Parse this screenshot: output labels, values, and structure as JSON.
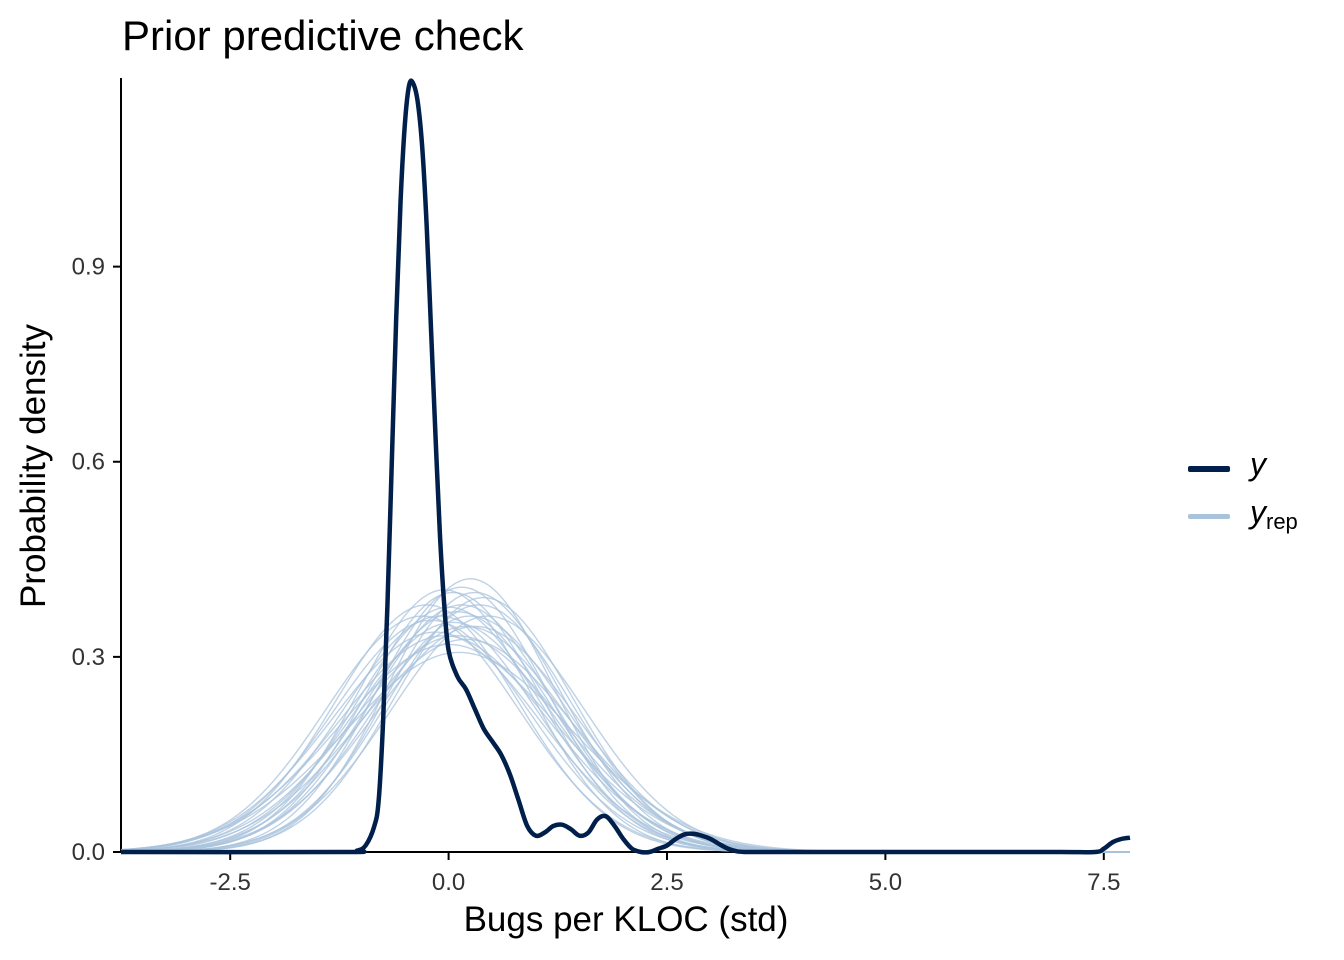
{
  "chart_data": {
    "type": "line",
    "title": "Prior predictive check",
    "xlabel": "Bugs per KLOC (std)",
    "ylabel": "Probability density",
    "xlim": [
      -3.75,
      7.8
    ],
    "ylim": [
      0,
      1.19
    ],
    "xticks": [
      "-2.5",
      "0.0",
      "2.5",
      "5.0",
      "7.5"
    ],
    "yticks": [
      "0.0",
      "0.3",
      "0.6",
      "0.9"
    ],
    "grid": false,
    "legend_position": "right",
    "legend": [
      {
        "label": "y",
        "subscript": "",
        "color": "#011f4b"
      },
      {
        "label": "y",
        "subscript": "rep",
        "color": "#a9c3dc"
      }
    ],
    "series": [
      {
        "name": "y",
        "color": "#011f4b",
        "x": [
          -3.75,
          -1.2,
          -1.05,
          -0.95,
          -0.85,
          -0.8,
          -0.75,
          -0.7,
          -0.65,
          -0.6,
          -0.55,
          -0.5,
          -0.45,
          -0.4,
          -0.35,
          -0.3,
          -0.25,
          -0.2,
          -0.15,
          -0.1,
          -0.05,
          0.0,
          0.1,
          0.2,
          0.3,
          0.4,
          0.5,
          0.6,
          0.7,
          0.8,
          0.9,
          1.0,
          1.1,
          1.2,
          1.3,
          1.4,
          1.5,
          1.6,
          1.7,
          1.8,
          1.9,
          2.0,
          2.1,
          2.2,
          2.3,
          2.4,
          2.5,
          2.6,
          2.7,
          2.8,
          2.9,
          3.0,
          3.1,
          3.2,
          3.3,
          3.4,
          3.5,
          3.6,
          3.7,
          4.0,
          5.0,
          6.0,
          7.0,
          7.4,
          7.5,
          7.6,
          7.7,
          7.8
        ],
        "y": [
          0.0,
          0.0,
          0.002,
          0.01,
          0.04,
          0.08,
          0.2,
          0.38,
          0.6,
          0.82,
          1.0,
          1.12,
          1.18,
          1.18,
          1.15,
          1.08,
          0.96,
          0.8,
          0.64,
          0.49,
          0.38,
          0.31,
          0.27,
          0.25,
          0.22,
          0.19,
          0.17,
          0.15,
          0.12,
          0.08,
          0.04,
          0.025,
          0.03,
          0.04,
          0.042,
          0.035,
          0.025,
          0.03,
          0.05,
          0.055,
          0.04,
          0.02,
          0.005,
          0.0,
          0.0,
          0.005,
          0.01,
          0.02,
          0.027,
          0.028,
          0.025,
          0.02,
          0.012,
          0.005,
          0.001,
          0.0,
          0.0,
          0.0,
          0.0,
          0.0,
          0.0,
          0.0,
          0.0,
          0.0,
          0.005,
          0.015,
          0.02,
          0.022
        ]
      },
      {
        "name": "y_rep",
        "color": "#a9c3dc",
        "params": [
          [
            0.05,
            1.0
          ],
          [
            0.15,
            1.05
          ],
          [
            0.3,
            1.0
          ],
          [
            -0.1,
            1.1
          ],
          [
            0.2,
            1.15
          ],
          [
            -0.05,
            1.2
          ],
          [
            0.25,
            0.95
          ],
          [
            0.1,
            1.08
          ],
          [
            -0.2,
            1.12
          ],
          [
            0.35,
            1.05
          ],
          [
            0.0,
            1.25
          ],
          [
            0.15,
            0.98
          ],
          [
            -0.15,
            1.18
          ],
          [
            0.4,
            1.02
          ],
          [
            0.05,
            1.13
          ],
          [
            0.2,
            1.22
          ],
          [
            -0.25,
            1.05
          ],
          [
            0.3,
            1.15
          ],
          [
            0.1,
            1.2
          ],
          [
            -0.05,
            0.99
          ],
          [
            0.25,
            1.1
          ],
          [
            0.0,
            1.06
          ],
          [
            0.45,
            1.1
          ],
          [
            -0.3,
            1.1
          ],
          [
            0.12,
            1.3
          ]
        ]
      }
    ]
  }
}
